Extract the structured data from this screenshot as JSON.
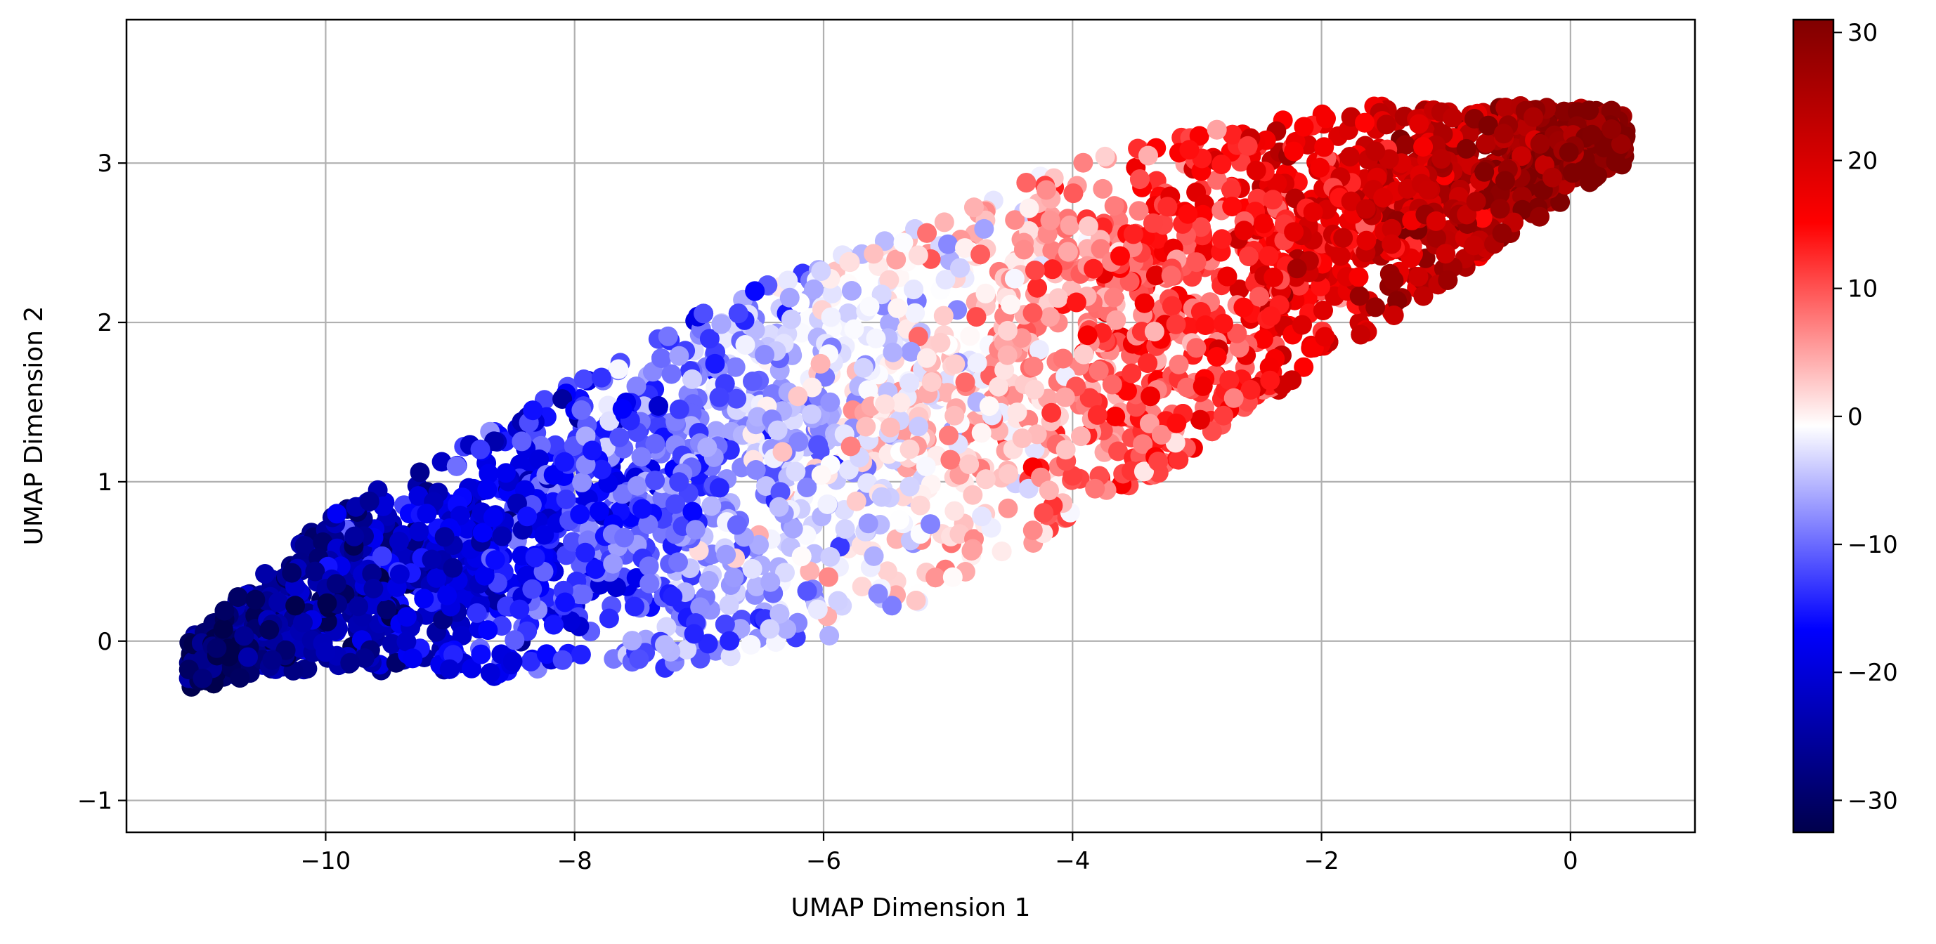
{
  "chart_data": {
    "type": "scatter",
    "title": "",
    "xlabel": "UMAP Dimension 1",
    "ylabel": "UMAP Dimension 2",
    "xlim": [
      -11.6,
      1.0
    ],
    "ylim": [
      -1.2,
      3.9
    ],
    "xticks": [
      -10,
      -8,
      -6,
      -4,
      -2,
      0
    ],
    "yticks": [
      -1,
      0,
      1,
      2,
      3
    ],
    "xtick_labels": [
      "−10",
      "−8",
      "−6",
      "−4",
      "−2",
      "0"
    ],
    "ytick_labels": [
      "−1",
      "0",
      "1",
      "2",
      "3"
    ],
    "grid": true,
    "colormap": "seismic",
    "colorbar": {
      "range": [
        -32.5,
        31.0
      ],
      "ticks": [
        -30,
        -20,
        -10,
        0,
        10,
        20,
        30
      ],
      "tick_labels": [
        "−30",
        "−20",
        "−10",
        "0",
        "10",
        "20",
        "30"
      ]
    },
    "points": {
      "description_of_distribution": "elongated point cloud from about (-11.1, -0.1) to (0.4, 3.1); color value increases roughly linearly with UMAP Dimension 1",
      "spine": [
        [
          -11.0,
          -0.1
        ],
        [
          -10.0,
          0.3
        ],
        [
          -8.0,
          0.7
        ],
        [
          -6.0,
          1.2
        ],
        [
          -4.0,
          1.85
        ],
        [
          -2.0,
          2.55
        ],
        [
          0.3,
          3.15
        ]
      ],
      "n_points": 4200
    }
  }
}
